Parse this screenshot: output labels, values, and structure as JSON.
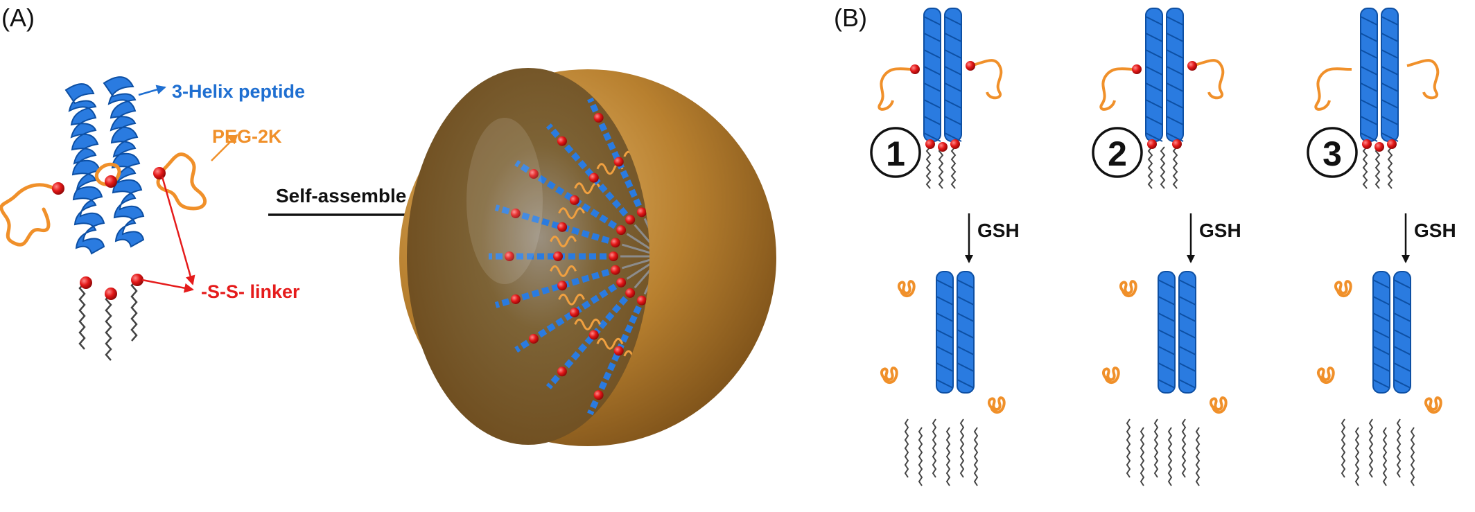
{
  "panels": {
    "a_label": "(A)",
    "b_label": "(B)"
  },
  "labels": {
    "helix": "3-Helix peptide",
    "peg": "PEG-2K",
    "linker": "-S-S- linker",
    "self_assemble": "Self-assemble"
  },
  "variants": [
    {
      "number": "1",
      "reagent": "GSH"
    },
    {
      "number": "2",
      "reagent": "GSH"
    },
    {
      "number": "3",
      "reagent": "GSH"
    }
  ],
  "colors": {
    "helix": "#1f6fd1",
    "peg": "#f0902a",
    "linker": "#e51b1b",
    "sphere": "#b07a2a",
    "lipid": "#444444"
  }
}
